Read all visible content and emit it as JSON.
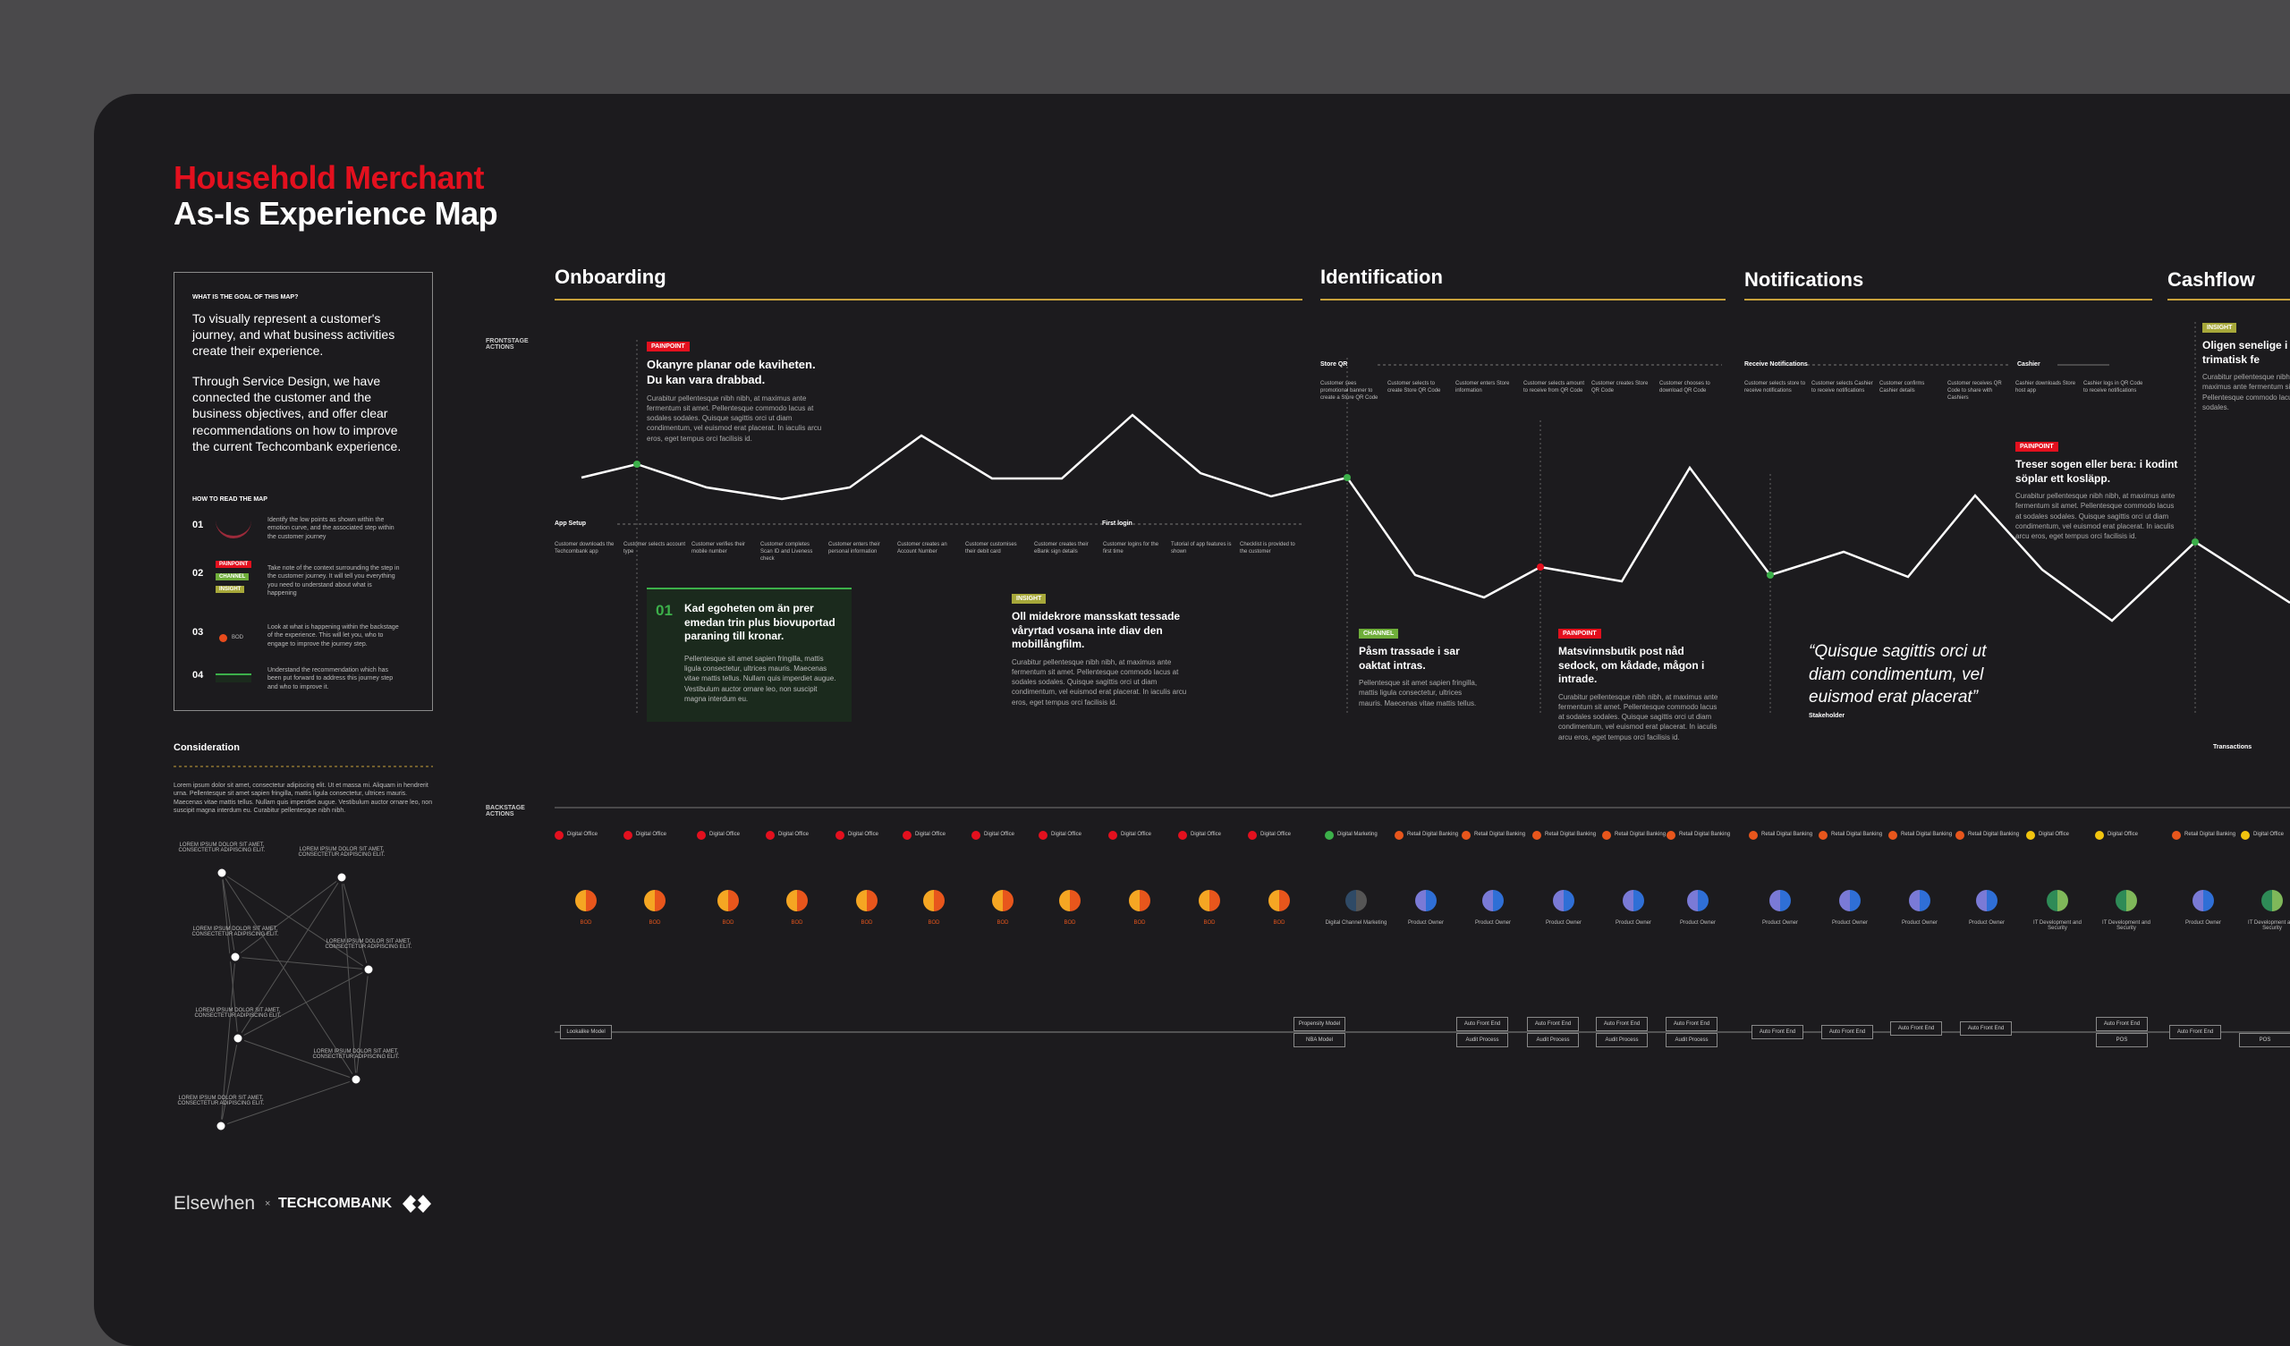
{
  "header": {
    "title_line1": "Household Merchant",
    "title_line2": "As-Is Experience Map"
  },
  "goal": {
    "heading": "WHAT IS THE GOAL OF THIS MAP?",
    "paragraph1": "To visually represent a customer's journey, and what business activities create their experience.",
    "paragraph2": "Through Service Design, we have connected the customer and the business objectives, and offer clear recommendations on how to improve the current Techcombank experience.",
    "how_heading": "HOW TO READ THE MAP",
    "steps": [
      {
        "number": "01",
        "text": "Identify the low points as shown within the emotion curve, and the associated step within the customer journey"
      },
      {
        "number": "02",
        "text": "Take note of the context surrounding the step in the customer journey. It will tell you everything you need to understand about what is happening"
      },
      {
        "number": "03",
        "text": "Look at what is happening within the backstage of the experience. This will let you, who to engage to improve the journey step."
      },
      {
        "number": "04",
        "text": "Understand the recommendation which has been put forward to address this journey step and who to improve it."
      }
    ],
    "tags": [
      "PAINPOINT",
      "CHANNEL",
      "INSIGHT"
    ],
    "bod_label": "BOD"
  },
  "consideration": {
    "heading": "Consideration",
    "text": "Lorem ipsum dolor sit amet, consectetur adipiscing elit. Ut et massa mi. Aliquam in hendrerit urna. Pellentesque sit amet sapien fringilla, mattis ligula consectetur, ultrices mauris. Maecenas vitae mattis tellus. Nullam quis imperdiet augue. Vestibulum auctor ornare leo, non suscipit magna interdum eu. Curabitur pellentesque nibh nibh.",
    "nodes": [
      "LOREM IPSUM DOLOR SIT AMET, CONSECTETUR ADIPISCING ELIT.",
      "LOREM IPSUM DOLOR SIT AMET, CONSECTETUR ADIPISCING ELIT.",
      "LOREM IPSUM DOLOR SIT AMET, CONSECTETUR ADIPISCING ELIT.",
      "LOREM IPSUM DOLOR SIT AMET, CONSECTETUR ADIPISCING ELIT.",
      "LOREM IPSUM DOLOR SIT AMET, CONSECTETUR ADIPISCING ELIT.",
      "LOREM IPSUM DOLOR SIT AMET, CONSECTETUR ADIPISCING ELIT.",
      "LOREM IPSUM DOLOR SIT AMET, CONSECTETUR ADIPISCING ELIT."
    ]
  },
  "footer": {
    "brand1": "Elsewhen",
    "times": "×",
    "brand2": "TECHCOMBANK"
  },
  "lanes": {
    "frontstage": "FRONTSTAGE ACTIONS",
    "backstage": "BACKSTAGE ACTIONS"
  },
  "sections": [
    "Onboarding",
    "Identification",
    "Notifications",
    "Cashflow"
  ],
  "phases": [
    "App Setup",
    "First login",
    "Store QR",
    "Receive Notifications",
    "Cashier",
    "Transactions"
  ],
  "cards": {
    "painpoint1": {
      "tag": "PAINPOINT",
      "heading": "Okanyre planar ode kaviheten. Du kan vara drabbad.",
      "body": "Curabitur pellentesque nibh nibh, at maximus ante fermentum sit amet. Pellentesque commodo lacus at sodales sodales. Quisque sagittis orci ut diam condimentum, vel euismod erat placerat. In iaculis arcu eros, eget tempus orci facilisis id."
    },
    "recommendation": {
      "number": "01",
      "heading": "Kad egoheten om än prer emedan trin plus biovuportad paraning till kronar.",
      "body": "Pellentesque sit amet sapien fringilla, mattis ligula consectetur, ultrices mauris. Maecenas vitae mattis tellus. Nullam quis imperdiet augue. Vestibulum auctor ornare leo, non suscipit magna interdum eu."
    },
    "insight": {
      "tag": "INSIGHT",
      "heading": "Oll midekrore mansskatt tessade våryrtad vosana inte diav den mobillångfilm.",
      "body": "Curabitur pellentesque nibh nibh, at maximus ante fermentum sit amet. Pellentesque commodo lacus at sodales sodales. Quisque sagittis orci ut diam condimentum, vel euismod erat placerat. In iaculis arcu eros, eget tempus orci facilisis id."
    },
    "channel": {
      "tag": "CHANNEL",
      "heading": "Påsm trassade i sar oaktat intras.",
      "body": "Pellentesque sit amet sapien fringilla, mattis ligula consectetur, ultrices mauris. Maecenas vitae mattis tellus."
    },
    "painpoint2": {
      "tag": "PAINPOINT",
      "heading": "Matsvinnsbutik post nåd sedock, om kådade, mågon i intrade.",
      "body": "Curabitur pellentesque nibh nibh, at maximus ante fermentum sit amet. Pellentesque commodo lacus at sodales sodales. Quisque sagittis orci ut diam condimentum, vel euismod erat placerat. In iaculis arcu eros, eget tempus orci facilisis id."
    },
    "quote": {
      "text": "“Quisque sagittis orci ut diam condimentum, vel euismod erat placerat”",
      "author": "Stakeholder"
    },
    "painpoint3": {
      "tag": "PAINPOINT",
      "heading": "Treser sogen eller bera: i kodint söplar ett kosläpp.",
      "body": "Curabitur pellentesque nibh nibh, at maximus ante fermentum sit amet. Pellentesque commodo lacus at sodales sodales. Quisque sagittis orci ut diam condimentum, vel euismod erat placerat. In iaculis arcu eros, eget tempus orci facilisis id."
    },
    "cashflow": {
      "tag": "INSIGHT",
      "heading": "Oligen senelige i tusm trimatisk fe",
      "body": "Curabitur pellentesque nibh nibh, at maximus ante fermentum sit amet. Pellentesque commodo lacus at sodales sodales."
    }
  },
  "steps_front": [
    "Customer downloads the Techcombank app",
    "Customer selects account type",
    "Customer verifies their mobile number",
    "Customer completes Scan ID and Liveness check",
    "Customer enters their personal information",
    "Customer creates an Account Number",
    "Customer customises their debit card",
    "Customer creates their eBank sign details",
    "Customer logins for the first time",
    "Tutorial of app features is shown",
    "Checklist is provided to the customer",
    "Customer sees promotional banner to create a Store QR Code",
    "Customer selects to create Store QR Code",
    "Customer enters Store information",
    "Customer selects amount to receive from QR Code",
    "Customer creates Store QR Code",
    "Customer chooses to download QR Code",
    "Customer selects store to receive notifications",
    "Customer selects Cashier to receive notifications",
    "Customer confirms Cashier details",
    "Customer receives QR Code to share with Cashiers",
    "Cashier downloads Store host app",
    "Cashier logs in QR Code to receive notifications"
  ],
  "backstage": [
    {
      "owner": "Digital Office",
      "role": "BOD"
    },
    {
      "owner": "Digital Office",
      "role": "BOD"
    },
    {
      "owner": "Digital Office",
      "role": "BOD"
    },
    {
      "owner": "Digital Office",
      "role": "BOD"
    },
    {
      "owner": "Digital Office",
      "role": "BOD"
    },
    {
      "owner": "Digital Office",
      "role": "BOD"
    },
    {
      "owner": "Digital Office",
      "role": "BOD"
    },
    {
      "owner": "Digital Office",
      "role": "BOD"
    },
    {
      "owner": "Digital Office",
      "role": "BOD"
    },
    {
      "owner": "Digital Office",
      "role": "BOD"
    },
    {
      "owner": "Digital Office",
      "role": "BOD"
    },
    {
      "owner": "Digital Marketing",
      "role": "Digital Channel Marketing"
    },
    {
      "owner": "Retail Digital Banking",
      "role": "Product Owner"
    },
    {
      "owner": "Retail Digital Banking",
      "role": "Product Owner"
    },
    {
      "owner": "Retail Digital Banking",
      "role": "Product Owner"
    },
    {
      "owner": "Retail Digital Banking",
      "role": "Product Owner"
    },
    {
      "owner": "Retail Digital Banking",
      "role": "Product Owner"
    },
    {
      "owner": "Retail Digital Banking",
      "role": "Product Owner"
    },
    {
      "owner": "Retail Digital Banking",
      "role": "Product Owner"
    },
    {
      "owner": "Retail Digital Banking",
      "role": "Product Owner"
    },
    {
      "owner": "Retail Digital Banking",
      "role": "Product Owner"
    },
    {
      "owner": "Digital Office",
      "role": "IT Development and Security"
    },
    {
      "owner": "Digital Office",
      "role": "IT Development and Security"
    },
    {
      "owner": "Retail Digital Banking",
      "role": "Product Owner"
    },
    {
      "owner": "Digital Office",
      "role": "IT Development and Security"
    }
  ],
  "systems": [
    "Lookalike Model",
    "Propensity Model",
    "NBA Model",
    "Auto Front End",
    "Audit Process",
    "Auto Front End",
    "Audit Process",
    "Auto Front End",
    "Audit Process",
    "Auto Front End",
    "Audit Process",
    "Auto Front End",
    "Auto Front End",
    "Auto Front End",
    "Auto Front End",
    "Auto Front End",
    "POS",
    "Auto Front End",
    "POS"
  ]
}
